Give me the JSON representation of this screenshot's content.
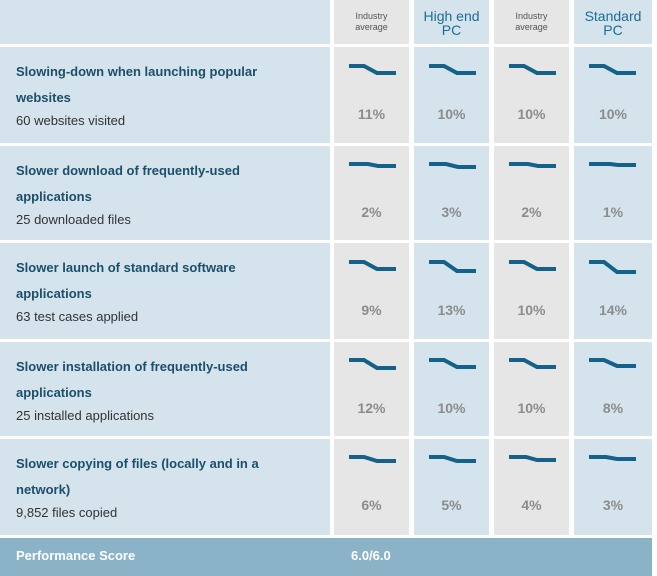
{
  "header": {
    "columns": [
      {
        "line1": "Industry",
        "line2": "average",
        "style": "small"
      },
      {
        "line1": "High end",
        "line2": "PC",
        "style": "big"
      },
      {
        "line1": "Industry",
        "line2": "average",
        "style": "small"
      },
      {
        "line1": "Standard",
        "line2": "PC",
        "style": "big"
      }
    ]
  },
  "rows": [
    {
      "title_line1": "Slowing-down when launching popular",
      "title_line2": "websites",
      "subtitle": "60 websites visited",
      "values": [
        "11%",
        "10%",
        "10%",
        "10%"
      ]
    },
    {
      "title_line1": "Slower download of frequently-used",
      "title_line2": "applications",
      "subtitle": "25 downloaded files",
      "values": [
        "2%",
        "3%",
        "2%",
        "1%"
      ]
    },
    {
      "title_line1": "Slower launch of standard software",
      "title_line2": "applications",
      "subtitle": "63 test cases applied",
      "values": [
        "9%",
        "13%",
        "10%",
        "14%"
      ]
    },
    {
      "title_line1": "Slower installation of frequently-used",
      "title_line2": "applications",
      "subtitle": "25 installed applications",
      "values": [
        "12%",
        "10%",
        "10%",
        "8%"
      ]
    },
    {
      "title_line1": "Slower copying of files (locally and in a",
      "title_line2": "network)",
      "subtitle": "9,852 files copied",
      "values": [
        "6%",
        "5%",
        "4%",
        "3%"
      ]
    }
  ],
  "footer": {
    "label": "Performance Score",
    "score": "6.0/6.0"
  },
  "colors": {
    "label_bg": "#d4e3ec",
    "gray_col": "#e6e6e6",
    "title_text": "#1c4f6b",
    "spark_line": "#14628a",
    "footer_bg": "#8ab3c8"
  }
}
